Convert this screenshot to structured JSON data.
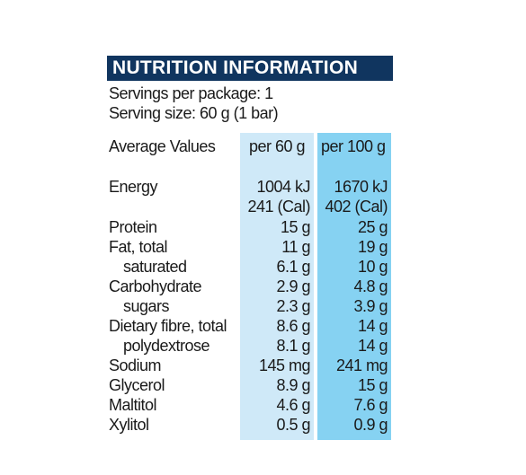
{
  "title": "NUTRITION INFORMATION",
  "servings_per_package": "Servings per package: 1",
  "serving_size": "Serving size: 60 g (1 bar)",
  "header": {
    "label": "Average Values",
    "col1": "per 60 g",
    "col2": "per 100 g"
  },
  "rows": [
    {
      "label": "Energy",
      "v60": "1004 kJ",
      "v100": "1670 kJ"
    },
    {
      "label": "",
      "v60": "241 (Cal)",
      "v100": "402 (Cal)"
    },
    {
      "label": "Protein",
      "v60": "15 g",
      "v100": "25 g"
    },
    {
      "label": "Fat, total",
      "v60": "11 g",
      "v100": "19 g"
    },
    {
      "label": "saturated",
      "v60": "6.1 g",
      "v100": "10 g"
    },
    {
      "label": "Carbohydrate",
      "v60": "2.9 g",
      "v100": "4.8 g"
    },
    {
      "label": "sugars",
      "v60": "2.3 g",
      "v100": "3.9 g"
    },
    {
      "label": "Dietary fibre, total",
      "v60": "8.6 g",
      "v100": "14 g"
    },
    {
      "label": "polydextrose",
      "v60": "8.1 g",
      "v100": "14 g"
    },
    {
      "label": "Sodium",
      "v60": "145 mg",
      "v100": "241 mg"
    },
    {
      "label": "Glycerol",
      "v60": "8.9 g",
      "v100": "15 g"
    },
    {
      "label": "Maltitol",
      "v60": "4.6 g",
      "v100": "7.6 g"
    },
    {
      "label": "Xylitol",
      "v60": "0.5 g",
      "v100": "0.9 g"
    }
  ],
  "colors": {
    "title_bg": "#10355f",
    "col60_bg": "#cfe9f8",
    "col100_bg": "#86d2f2"
  }
}
